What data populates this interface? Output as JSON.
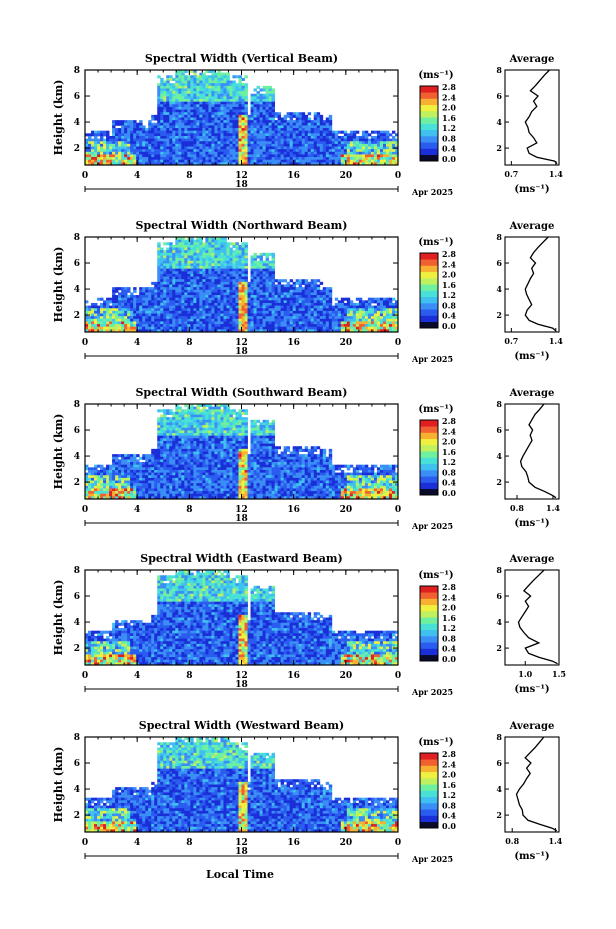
{
  "figure": {
    "xlabel": "Local Time",
    "date_label": "Apr 2025",
    "day_label": "18",
    "ylabel": "Height (km)",
    "colorbar_unit": "(ms⁻¹)",
    "avg_title": "Average",
    "avg_xlabel": "(ms⁻¹)",
    "colormap": [
      "#0a0a2a",
      "#1a2fd8",
      "#2b5cf0",
      "#3a8ef5",
      "#3fc0f0",
      "#49e0d8",
      "#6ff0a0",
      "#bff060",
      "#f0f040",
      "#f8b030",
      "#f06030",
      "#e02020"
    ]
  },
  "chart_data": [
    {
      "type": "heatmap",
      "title": "Spectral Width (Vertical Beam)",
      "x_ticks": [
        "0",
        "4",
        "8",
        "12",
        "16",
        "20",
        "0"
      ],
      "y_ticks": [
        "2",
        "4",
        "6",
        "8"
      ],
      "colorbar_ticks": [
        "0.0",
        "0.4",
        "0.8",
        "1.2",
        "1.6",
        "2.0",
        "2.4",
        "2.8"
      ],
      "xlim": [
        0,
        24
      ],
      "ylim": [
        0.7,
        8
      ],
      "clim": [
        0,
        3.0
      ],
      "average": {
        "xlim": [
          0.6,
          1.45
        ],
        "x_ticks": [
          "0.7",
          "1.4"
        ],
        "y_ticks": [
          "2",
          "4",
          "6",
          "8"
        ],
        "height": [
          0.8,
          1.0,
          1.3,
          1.6,
          2.0,
          2.4,
          2.8,
          3.2,
          3.6,
          4.0,
          4.4,
          4.8,
          5.2,
          5.6,
          6.0,
          6.4,
          6.8,
          7.2,
          7.6,
          8.0
        ],
        "value": [
          1.42,
          1.38,
          1.1,
          0.98,
          0.95,
          1.1,
          1.05,
          0.98,
          0.96,
          0.92,
          0.98,
          1.02,
          1.1,
          1.05,
          1.12,
          1.0,
          1.08,
          1.15,
          1.22,
          1.3
        ]
      }
    },
    {
      "type": "heatmap",
      "title": "Spectral Width (Northward Beam)",
      "x_ticks": [
        "0",
        "4",
        "8",
        "12",
        "16",
        "20",
        "0"
      ],
      "y_ticks": [
        "2",
        "4",
        "6",
        "8"
      ],
      "colorbar_ticks": [
        "0.0",
        "0.4",
        "0.8",
        "1.2",
        "1.6",
        "2.0",
        "2.4",
        "2.8"
      ],
      "xlim": [
        0,
        24
      ],
      "ylim": [
        0.7,
        8
      ],
      "clim": [
        0,
        3.0
      ],
      "average": {
        "xlim": [
          0.6,
          1.45
        ],
        "x_ticks": [
          "0.7",
          "1.4"
        ],
        "y_ticks": [
          "2",
          "4",
          "6",
          "8"
        ],
        "height": [
          0.8,
          1.0,
          1.3,
          1.6,
          2.0,
          2.4,
          2.8,
          3.2,
          3.6,
          4.0,
          4.4,
          4.8,
          5.2,
          5.6,
          6.0,
          6.4,
          6.8,
          7.2,
          7.6,
          8.0
        ],
        "value": [
          1.4,
          1.35,
          1.12,
          0.98,
          0.92,
          0.95,
          1.02,
          0.98,
          0.94,
          0.92,
          0.96,
          1.0,
          1.05,
          1.02,
          1.08,
          1.0,
          1.05,
          1.12,
          1.2,
          1.28
        ]
      }
    },
    {
      "type": "heatmap",
      "title": "Spectral Width (Southward Beam)",
      "x_ticks": [
        "0",
        "4",
        "8",
        "12",
        "16",
        "20",
        "0"
      ],
      "y_ticks": [
        "2",
        "4",
        "6",
        "8"
      ],
      "colorbar_ticks": [
        "0.0",
        "0.4",
        "0.8",
        "1.2",
        "1.6",
        "2.0",
        "2.4",
        "2.8"
      ],
      "xlim": [
        0,
        24
      ],
      "ylim": [
        0.7,
        8
      ],
      "clim": [
        0,
        3.0
      ],
      "average": {
        "xlim": [
          0.6,
          1.5
        ],
        "x_ticks": [
          "0.8",
          "1.4"
        ],
        "y_ticks": [
          "2",
          "4",
          "6",
          "8"
        ],
        "height": [
          0.8,
          1.0,
          1.3,
          1.6,
          2.0,
          2.4,
          2.8,
          3.2,
          3.6,
          4.0,
          4.4,
          4.8,
          5.2,
          5.6,
          6.0,
          6.4,
          6.8,
          7.2,
          7.6,
          8.0
        ],
        "value": [
          1.45,
          1.38,
          1.25,
          1.1,
          1.0,
          0.98,
          0.95,
          0.88,
          0.86,
          0.9,
          0.95,
          1.0,
          1.05,
          1.02,
          1.06,
          1.0,
          1.05,
          1.1,
          1.18,
          1.25
        ]
      }
    },
    {
      "type": "heatmap",
      "title": "Spectral Width (Eastward Beam)",
      "x_ticks": [
        "0",
        "4",
        "8",
        "12",
        "16",
        "20",
        "0"
      ],
      "y_ticks": [
        "2",
        "4",
        "6",
        "8"
      ],
      "colorbar_ticks": [
        "0.0",
        "0.4",
        "0.8",
        "1.2",
        "1.6",
        "2.0",
        "2.4",
        "2.8"
      ],
      "xlim": [
        0,
        24
      ],
      "ylim": [
        0.7,
        8
      ],
      "clim": [
        0,
        3.0
      ],
      "average": {
        "xlim": [
          0.7,
          1.5
        ],
        "x_ticks": [
          "1.0",
          "1.5"
        ],
        "y_ticks": [
          "2",
          "4",
          "6",
          "8"
        ],
        "height": [
          0.8,
          1.0,
          1.3,
          1.6,
          2.0,
          2.4,
          2.8,
          3.2,
          3.6,
          4.0,
          4.4,
          4.8,
          5.2,
          5.6,
          6.0,
          6.4,
          6.8,
          7.2,
          7.6,
          8.0
        ],
        "value": [
          1.48,
          1.4,
          1.2,
          1.05,
          1.0,
          1.2,
          1.05,
          0.98,
          0.92,
          0.9,
          0.95,
          1.0,
          1.05,
          1.0,
          1.08,
          0.98,
          1.05,
          1.12,
          1.2,
          1.28
        ]
      }
    },
    {
      "type": "heatmap",
      "title": "Spectral Width (Westward Beam)",
      "x_ticks": [
        "0",
        "4",
        "8",
        "12",
        "16",
        "20",
        "0"
      ],
      "y_ticks": [
        "2",
        "4",
        "6",
        "8"
      ],
      "colorbar_ticks": [
        "0.0",
        "0.4",
        "0.8",
        "1.2",
        "1.6",
        "2.0",
        "2.4",
        "2.8"
      ],
      "xlim": [
        0,
        24
      ],
      "ylim": [
        0.7,
        8
      ],
      "clim": [
        0,
        3.0
      ],
      "average": {
        "xlim": [
          0.7,
          1.45
        ],
        "x_ticks": [
          "0.8",
          "1.4"
        ],
        "y_ticks": [
          "2",
          "4",
          "6",
          "8"
        ],
        "height": [
          0.8,
          1.0,
          1.3,
          1.6,
          2.0,
          2.4,
          2.8,
          3.2,
          3.6,
          4.0,
          4.4,
          4.8,
          5.2,
          5.6,
          6.0,
          6.4,
          6.8,
          7.2,
          7.6,
          8.0
        ],
        "value": [
          1.42,
          1.35,
          1.18,
          1.02,
          0.95,
          0.94,
          0.9,
          0.88,
          0.86,
          0.9,
          0.96,
          1.0,
          1.05,
          1.0,
          1.06,
          0.98,
          1.05,
          1.12,
          1.18,
          1.24
        ]
      }
    }
  ]
}
